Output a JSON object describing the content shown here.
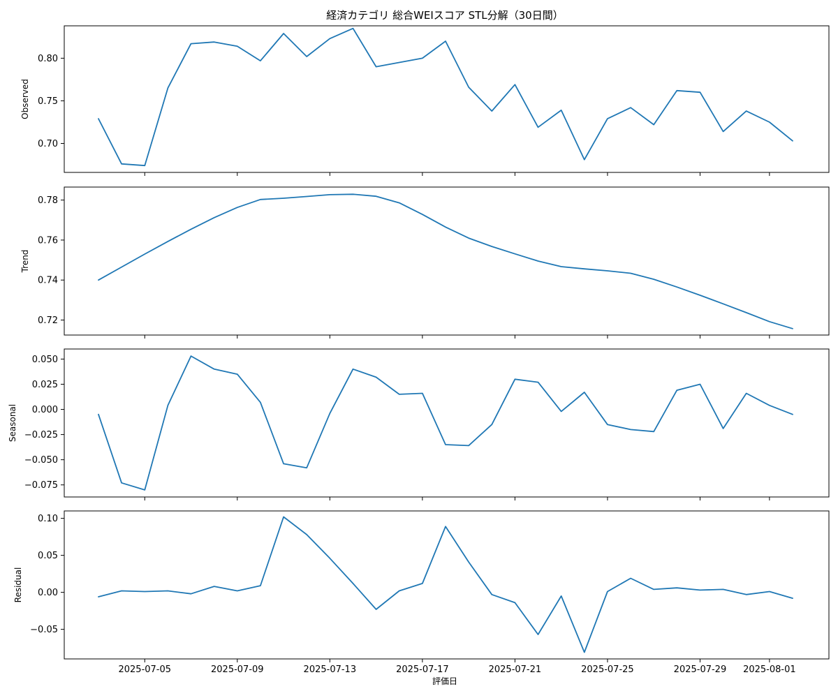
{
  "chart_data": {
    "type": "line",
    "title": "経済カテゴリ 総合WEIスコア STL分解（30日間）",
    "xlabel": "評価日",
    "x": [
      "2025-07-03",
      "2025-07-04",
      "2025-07-05",
      "2025-07-06",
      "2025-07-07",
      "2025-07-08",
      "2025-07-09",
      "2025-07-10",
      "2025-07-11",
      "2025-07-12",
      "2025-07-13",
      "2025-07-14",
      "2025-07-15",
      "2025-07-16",
      "2025-07-17",
      "2025-07-18",
      "2025-07-19",
      "2025-07-20",
      "2025-07-21",
      "2025-07-22",
      "2025-07-23",
      "2025-07-24",
      "2025-07-25",
      "2025-07-26",
      "2025-07-27",
      "2025-07-28",
      "2025-07-29",
      "2025-07-30",
      "2025-07-31",
      "2025-08-01",
      "2025-08-02"
    ],
    "x_ticks": [
      "2025-07-05",
      "2025-07-09",
      "2025-07-13",
      "2025-07-17",
      "2025-07-21",
      "2025-07-25",
      "2025-07-29",
      "2025-08-01"
    ],
    "color": "#1f77b4",
    "grid": false,
    "panels": [
      {
        "ylabel": "Observed",
        "ylim": [
          0.666,
          0.838
        ],
        "yticks": [
          "0.70",
          "0.75",
          "0.80"
        ],
        "values": [
          0.729,
          0.676,
          0.674,
          0.765,
          0.817,
          0.819,
          0.814,
          0.797,
          0.829,
          0.802,
          0.823,
          0.835,
          0.79,
          0.795,
          0.8,
          0.82,
          0.766,
          0.738,
          0.769,
          0.719,
          0.739,
          0.681,
          0.729,
          0.742,
          0.722,
          0.762,
          0.76,
          0.714,
          0.738,
          0.725,
          0.703
        ]
      },
      {
        "ylabel": "Trend",
        "ylim": [
          0.7125,
          0.7865
        ],
        "yticks": [
          "0.72",
          "0.74",
          "0.76",
          "0.78"
        ],
        "values": [
          0.74,
          0.7465,
          0.753,
          0.7593,
          0.7654,
          0.7712,
          0.7763,
          0.7803,
          0.7809,
          0.7818,
          0.7827,
          0.7829,
          0.7819,
          0.7786,
          0.7728,
          0.7665,
          0.761,
          0.7568,
          0.7531,
          0.7495,
          0.7467,
          0.7456,
          0.7446,
          0.7434,
          0.7404,
          0.7365,
          0.7324,
          0.7281,
          0.7237,
          0.7192,
          0.7157
        ]
      },
      {
        "ylabel": "Seasonal",
        "ylim": [
          -0.087,
          0.06
        ],
        "yticks": [
          "−0.075",
          "−0.050",
          "−0.025",
          "0.000",
          "0.025",
          "0.050"
        ],
        "values": [
          -0.005,
          -0.073,
          -0.08,
          0.004,
          0.053,
          0.04,
          0.035,
          0.007,
          -0.054,
          -0.058,
          -0.004,
          0.04,
          0.032,
          0.015,
          0.016,
          -0.035,
          -0.036,
          -0.015,
          0.03,
          0.027,
          -0.002,
          0.017,
          -0.015,
          -0.02,
          -0.022,
          0.019,
          0.025,
          -0.019,
          0.016,
          0.004,
          -0.005
        ]
      },
      {
        "ylabel": "Residual",
        "ylim": [
          -0.09,
          0.11
        ],
        "yticks": [
          "−0.05",
          "0.00",
          "0.05",
          "0.10"
        ],
        "values": [
          -0.006,
          0.002,
          0.001,
          0.002,
          -0.002,
          0.008,
          0.002,
          0.009,
          0.102,
          0.078,
          0.046,
          0.012,
          -0.023,
          0.002,
          0.012,
          0.089,
          0.041,
          -0.003,
          -0.014,
          -0.057,
          -0.005,
          -0.081,
          0.001,
          0.019,
          0.004,
          0.006,
          0.003,
          0.004,
          -0.003,
          0.001,
          -0.008
        ]
      }
    ]
  }
}
